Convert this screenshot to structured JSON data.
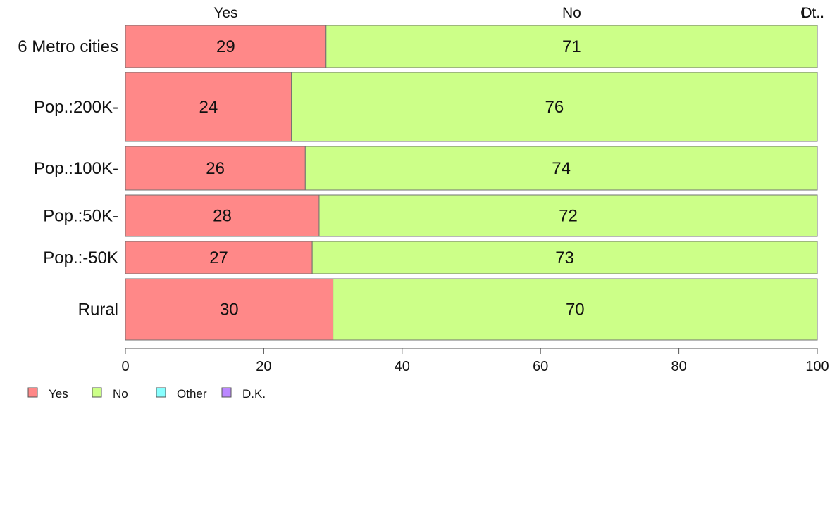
{
  "chart_data": {
    "type": "bar",
    "orientation": "horizontal",
    "stacked": true,
    "categories": [
      "6 Metro cities",
      "Pop.:200K-",
      "Pop.:100K-",
      "Pop.:50K-",
      "Pop.:-50K",
      "Rural"
    ],
    "series": [
      {
        "name": "Yes",
        "color": "#ff8888",
        "values": [
          29,
          24,
          26,
          28,
          27,
          30
        ]
      },
      {
        "name": "No",
        "color": "#ccff88",
        "values": [
          71,
          76,
          74,
          72,
          73,
          70
        ]
      },
      {
        "name": "Other",
        "color": "#88ffff",
        "values": [
          0,
          0,
          0,
          0,
          0,
          0
        ]
      },
      {
        "name": "D.K.",
        "color": "#bb88ff",
        "values": [
          0,
          0,
          0,
          0,
          0,
          0
        ]
      }
    ],
    "top_labels": [
      "Yes",
      "No",
      "Ot..",
      "D..."
    ],
    "xlim": [
      0,
      100
    ],
    "xticks": [
      0,
      20,
      40,
      60,
      80,
      100
    ],
    "legend_position": "bottom-left",
    "grid": false
  }
}
